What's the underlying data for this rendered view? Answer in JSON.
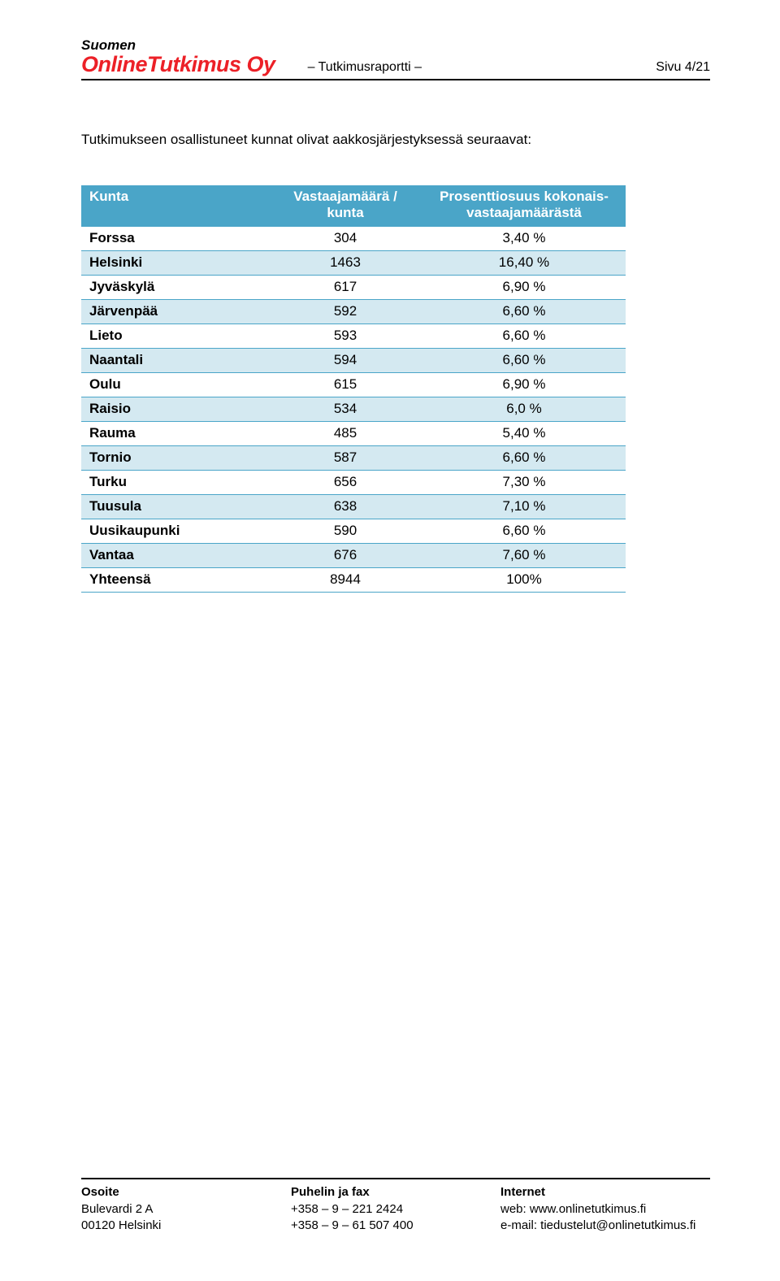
{
  "header": {
    "top": "Suomen",
    "company": "OnlineTutkimus Oy",
    "center": "– Tutkimusraportti –",
    "right": "Sivu 4/21"
  },
  "intro": "Tutkimukseen osallistuneet kunnat olivat aakkosjärjestyksessä seuraavat:",
  "table": {
    "headers": {
      "c0": "Kunta",
      "c1": "Vastaajamäärä / kunta",
      "c2": "Prosenttiosuus kokonais-vastaajamäärästä"
    },
    "rows": [
      {
        "kunta": "Forssa",
        "maara": "304",
        "pros": "3,40 %"
      },
      {
        "kunta": "Helsinki",
        "maara": "1463",
        "pros": "16,40 %"
      },
      {
        "kunta": "Jyväskylä",
        "maara": "617",
        "pros": "6,90 %"
      },
      {
        "kunta": "Järvenpää",
        "maara": "592",
        "pros": "6,60 %"
      },
      {
        "kunta": "Lieto",
        "maara": "593",
        "pros": "6,60 %"
      },
      {
        "kunta": "Naantali",
        "maara": "594",
        "pros": "6,60 %"
      },
      {
        "kunta": "Oulu",
        "maara": "615",
        "pros": "6,90 %"
      },
      {
        "kunta": "Raisio",
        "maara": "534",
        "pros": "6,0 %"
      },
      {
        "kunta": "Rauma",
        "maara": "485",
        "pros": "5,40 %"
      },
      {
        "kunta": "Tornio",
        "maara": "587",
        "pros": "6,60 %"
      },
      {
        "kunta": "Turku",
        "maara": "656",
        "pros": "7,30 %"
      },
      {
        "kunta": "Tuusula",
        "maara": "638",
        "pros": "7,10 %"
      },
      {
        "kunta": "Uusikaupunki",
        "maara": "590",
        "pros": "6,60 %"
      },
      {
        "kunta": "Vantaa",
        "maara": "676",
        "pros": "7,60 %"
      },
      {
        "kunta": "Yhteensä",
        "maara": "8944",
        "pros": "100%"
      }
    ],
    "colors": {
      "header_bg": "#4aa5c8",
      "header_fg": "#ffffff",
      "row_alt_bg": "#d4e9f1",
      "border": "#4aa5c8"
    }
  },
  "footer": {
    "col1": {
      "h": "Osoite",
      "l1": "Bulevardi 2 A",
      "l2": "00120 Helsinki"
    },
    "col2": {
      "h": "Puhelin ja fax",
      "l1": "+358 – 9 – 221 2424",
      "l2": "+358 – 9 – 61 507 400"
    },
    "col3": {
      "h": "Internet",
      "l1": "web: www.onlinetutkimus.fi",
      "l2": "e-mail: tiedustelut@onlinetutkimus.fi"
    }
  }
}
